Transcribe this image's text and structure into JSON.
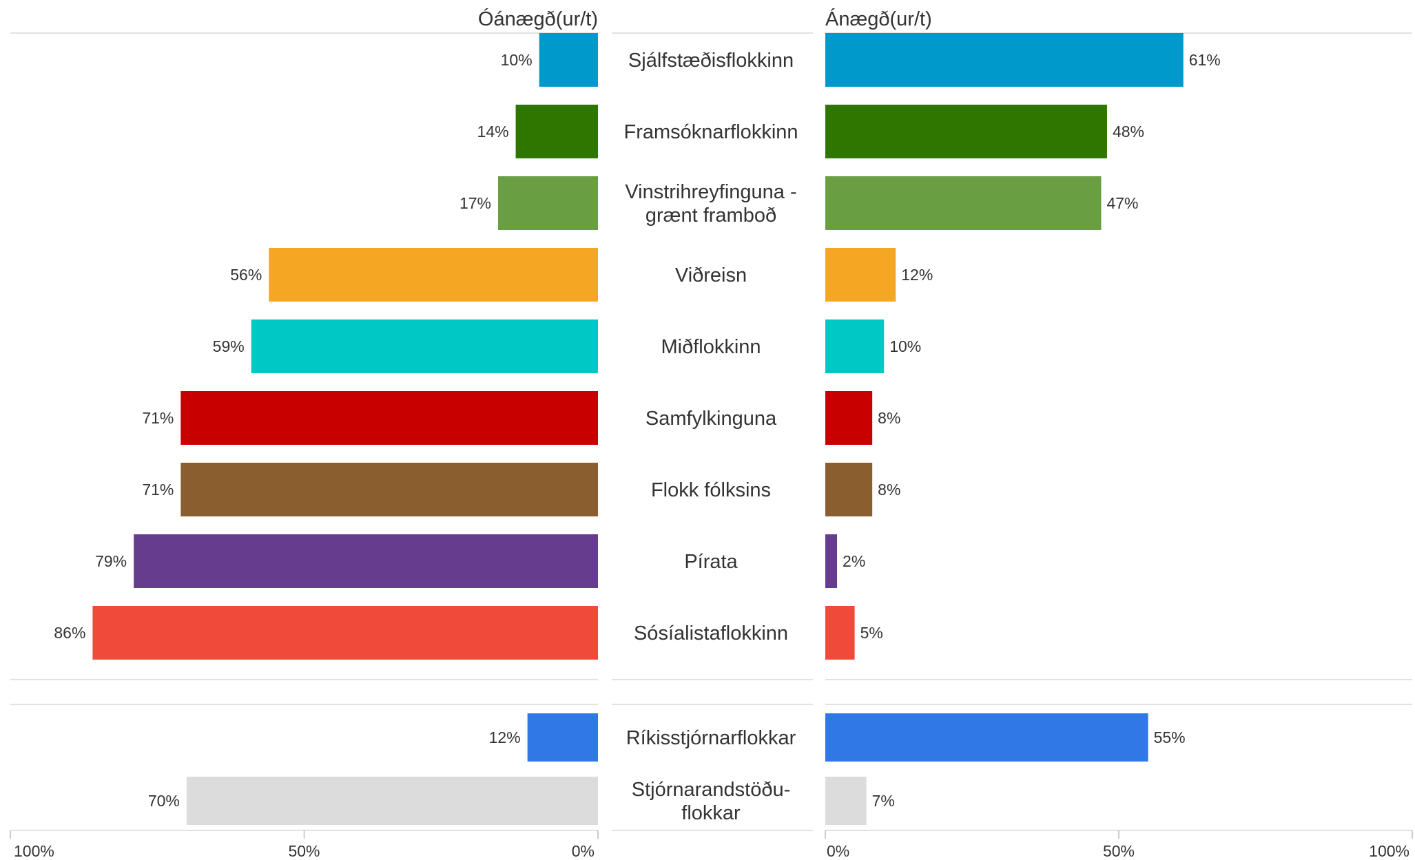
{
  "chart_data": {
    "type": "bar",
    "left_title": "Óánægð(ur/t)",
    "right_title": "Ánægð(ur/t)",
    "left_ticks": [
      "100%",
      "50%",
      "0%"
    ],
    "right_ticks": [
      "0%",
      "50%",
      "100%"
    ],
    "xlim": [
      0,
      100
    ],
    "value_suffix": "%",
    "groups": [
      {
        "rows": [
          {
            "category": "Sjálfstæðisflokkinn",
            "dissatisfied": 10,
            "satisfied": 61,
            "color": "#0099CC"
          },
          {
            "category": "Framsóknarflokkinn",
            "dissatisfied": 14,
            "satisfied": 48,
            "color": "#2E7600"
          },
          {
            "category": "Vinstrihreyfinguna - grænt framboð",
            "category_lines": [
              "Vinstrihreyfinguna -",
              "grænt framboð"
            ],
            "dissatisfied": 17,
            "satisfied": 47,
            "color": "#6A9E42"
          },
          {
            "category": "Viðreisn",
            "dissatisfied": 56,
            "satisfied": 12,
            "color": "#F5A623"
          },
          {
            "category": "Miðflokkinn",
            "dissatisfied": 59,
            "satisfied": 10,
            "color": "#00C8C4"
          },
          {
            "category": "Samfylkinguna",
            "dissatisfied": 71,
            "satisfied": 8,
            "color": "#C80000"
          },
          {
            "category": "Flokk fólksins",
            "dissatisfied": 71,
            "satisfied": 8,
            "color": "#8B5E30"
          },
          {
            "category": "Pírata",
            "dissatisfied": 79,
            "satisfied": 2,
            "color": "#663C8F"
          },
          {
            "category": "Sósíalistaflokkinn",
            "dissatisfied": 86,
            "satisfied": 5,
            "color": "#F04B3A"
          }
        ]
      },
      {
        "rows": [
          {
            "category": "Ríkisstjórnarflokkar",
            "dissatisfied": 12,
            "satisfied": 55,
            "color": "#2F78E6"
          },
          {
            "category": "Stjórnarandstöðu-flokkar",
            "category_lines": [
              "Stjórnarandstöðu-",
              "flokkar"
            ],
            "dissatisfied": 70,
            "satisfied": 7,
            "color": "#DCDCDC"
          }
        ]
      }
    ]
  }
}
